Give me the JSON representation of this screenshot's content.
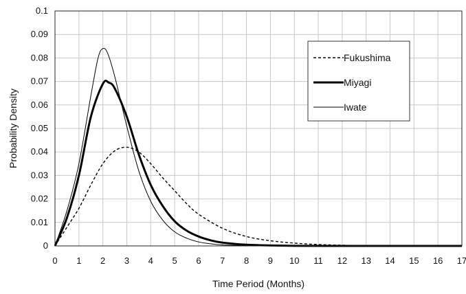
{
  "chart_data": {
    "type": "line",
    "xlabel": "Time Period (Months)",
    "ylabel": "Probability Density",
    "xlim": [
      0,
      17
    ],
    "ylim": [
      0,
      0.1
    ],
    "x_ticks": [
      "0",
      "1",
      "2",
      "3",
      "4",
      "5",
      "6",
      "7",
      "8",
      "9",
      "10",
      "11",
      "12",
      "13",
      "14",
      "15",
      "16",
      "17"
    ],
    "y_ticks": [
      "0",
      "0.01",
      "0.02",
      "0.03",
      "0.04",
      "0.05",
      "0.06",
      "0.07",
      "0.08",
      "0.09",
      "0.1"
    ],
    "grid": true,
    "legend_position": "top-right",
    "series": [
      {
        "name": "Fukushima",
        "style": "dashed",
        "color": "#000000",
        "x": [
          0,
          0.5,
          1,
          1.5,
          2,
          2.5,
          3,
          3.5,
          4,
          4.5,
          5,
          5.5,
          6,
          7,
          8,
          9,
          10,
          11,
          12,
          13,
          14,
          15,
          16,
          17
        ],
        "y": [
          0,
          0.008,
          0.016,
          0.026,
          0.035,
          0.0405,
          0.042,
          0.04,
          0.035,
          0.029,
          0.0235,
          0.018,
          0.0135,
          0.0075,
          0.004,
          0.0022,
          0.0012,
          0.0006,
          0.0003,
          0.00015,
          0.0001,
          5e-05,
          0,
          0
        ]
      },
      {
        "name": "Miyagi",
        "style": "thick",
        "color": "#000000",
        "x": [
          0,
          0.5,
          1,
          1.5,
          2,
          2.25,
          2.5,
          3,
          3.5,
          4,
          4.5,
          5,
          5.5,
          6,
          6.5,
          7,
          8,
          9,
          10,
          12,
          14,
          17
        ],
        "y": [
          0,
          0.012,
          0.03,
          0.055,
          0.069,
          0.0695,
          0.067,
          0.055,
          0.039,
          0.026,
          0.017,
          0.0105,
          0.0065,
          0.004,
          0.0024,
          0.0014,
          0.0005,
          0.0002,
          5e-05,
          0,
          0,
          0
        ]
      },
      {
        "name": "Iwate",
        "style": "thin",
        "color": "#000000",
        "x": [
          0,
          0.5,
          1,
          1.5,
          1.8,
          2,
          2.2,
          2.5,
          3,
          3.5,
          4,
          4.5,
          5,
          5.5,
          6,
          6.5,
          7,
          8,
          9,
          10,
          12,
          17
        ],
        "y": [
          0,
          0.015,
          0.035,
          0.064,
          0.08,
          0.084,
          0.082,
          0.072,
          0.051,
          0.032,
          0.019,
          0.011,
          0.006,
          0.0033,
          0.0017,
          0.0009,
          0.0004,
          0.0001,
          0,
          0,
          0,
          0
        ]
      }
    ]
  }
}
